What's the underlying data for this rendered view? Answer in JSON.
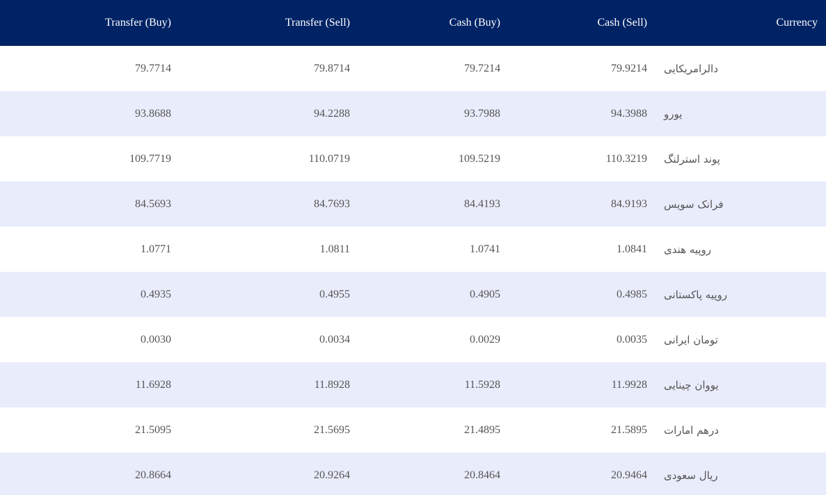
{
  "headers": {
    "transfer_buy": "Transfer (Buy)",
    "transfer_sell": "Transfer (Sell)",
    "cash_buy": "Cash (Buy)",
    "cash_sell": "Cash (Sell)",
    "currency": "Currency"
  },
  "rows": [
    {
      "transfer_buy": "79.7714",
      "transfer_sell": "79.8714",
      "cash_buy": "79.7214",
      "cash_sell": "79.9214",
      "currency": "دالرامریکایی"
    },
    {
      "transfer_buy": "93.8688",
      "transfer_sell": "94.2288",
      "cash_buy": "93.7988",
      "cash_sell": "94.3988",
      "currency": "یورو"
    },
    {
      "transfer_buy": "109.7719",
      "transfer_sell": "110.0719",
      "cash_buy": "109.5219",
      "cash_sell": "110.3219",
      "currency": "پوند استرلنگ"
    },
    {
      "transfer_buy": "84.5693",
      "transfer_sell": "84.7693",
      "cash_buy": "84.4193",
      "cash_sell": "84.9193",
      "currency": "فرانک سویس"
    },
    {
      "transfer_buy": "1.0771",
      "transfer_sell": "1.0811",
      "cash_buy": "1.0741",
      "cash_sell": "1.0841",
      "currency": "روپیه هندی"
    },
    {
      "transfer_buy": "0.4935",
      "transfer_sell": "0.4955",
      "cash_buy": "0.4905",
      "cash_sell": "0.4985",
      "currency": "روپیه پاکستانی"
    },
    {
      "transfer_buy": "0.0030",
      "transfer_sell": "0.0034",
      "cash_buy": "0.0029",
      "cash_sell": "0.0035",
      "currency": "تومان ایرانی"
    },
    {
      "transfer_buy": "11.6928",
      "transfer_sell": "11.8928",
      "cash_buy": "11.5928",
      "cash_sell": "11.9928",
      "currency": "یووان چینایی"
    },
    {
      "transfer_buy": "21.5095",
      "transfer_sell": "21.5695",
      "cash_buy": "21.4895",
      "cash_sell": "21.5895",
      "currency": "درهم امارات"
    },
    {
      "transfer_buy": "20.8664",
      "transfer_sell": "20.9264",
      "cash_buy": "20.8464",
      "cash_sell": "20.9464",
      "currency": "ریال سعودی"
    }
  ],
  "colors": {
    "header_bg": "#002366",
    "row_alt_bg": "#e9ecfb",
    "text": "#555555"
  }
}
